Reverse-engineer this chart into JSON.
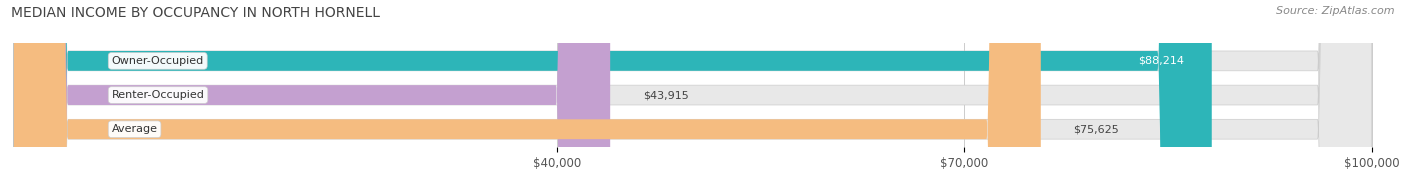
{
  "title": "MEDIAN INCOME BY OCCUPANCY IN NORTH HORNELL",
  "source": "Source: ZipAtlas.com",
  "categories": [
    "Owner-Occupied",
    "Renter-Occupied",
    "Average"
  ],
  "values": [
    88214,
    43915,
    75625
  ],
  "labels": [
    "$88,214",
    "$43,915",
    "$75,625"
  ],
  "bar_colors": [
    "#2db5b8",
    "#c4a0d0",
    "#f5bc80"
  ],
  "bar_bg_color": "#e8e8e8",
  "background_color": "#ffffff",
  "xmin": 0,
  "xmax": 100000,
  "xticks": [
    40000,
    70000,
    100000
  ],
  "xtick_labels": [
    "$40,000",
    "$70,000",
    "$100,000"
  ],
  "title_fontsize": 10,
  "source_fontsize": 8,
  "tick_fontsize": 8.5,
  "bar_label_fontsize": 8,
  "cat_label_fontsize": 8,
  "bar_height": 0.58,
  "label_value_color_owner": "#ffffff",
  "label_value_color_renter": "#555555",
  "label_value_color_avg": "#555555"
}
